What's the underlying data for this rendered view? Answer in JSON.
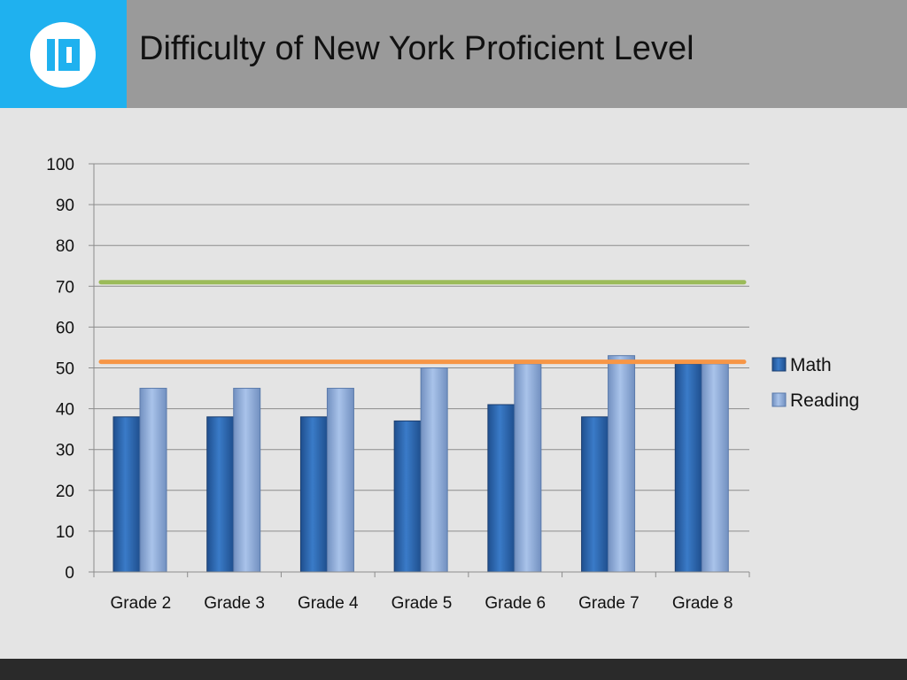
{
  "slide": {
    "title": "Difficulty of New York Proficient Level",
    "logo_icon": "brand-logo-icon",
    "colors": {
      "header_bg": "#9a9a9a",
      "logo_bg": "#1fb1ef",
      "slide_bg": "#e4e4e4",
      "footer_bg": "#2a2a2a"
    }
  },
  "chart_data": {
    "type": "bar",
    "title": "",
    "xlabel": "",
    "ylabel": "",
    "categories": [
      "Grade 2",
      "Grade 3",
      "Grade 4",
      "Grade 5",
      "Grade 6",
      "Grade 7",
      "Grade 8"
    ],
    "series": [
      {
        "name": "Math",
        "color": "#2e6ab4",
        "values": [
          38,
          38,
          38,
          37,
          41,
          38,
          51
        ]
      },
      {
        "name": "Reading",
        "color": "#8aabdc",
        "values": [
          45,
          45,
          45,
          50,
          51,
          53,
          51
        ]
      }
    ],
    "reference_lines": [
      {
        "value": 71,
        "color": "#9bbb59"
      },
      {
        "value": 51.5,
        "color": "#f79646"
      }
    ],
    "ylim": [
      0,
      100
    ],
    "yticks": [
      0,
      10,
      20,
      30,
      40,
      50,
      60,
      70,
      80,
      90,
      100
    ],
    "grid": true,
    "legend_position": "right"
  }
}
